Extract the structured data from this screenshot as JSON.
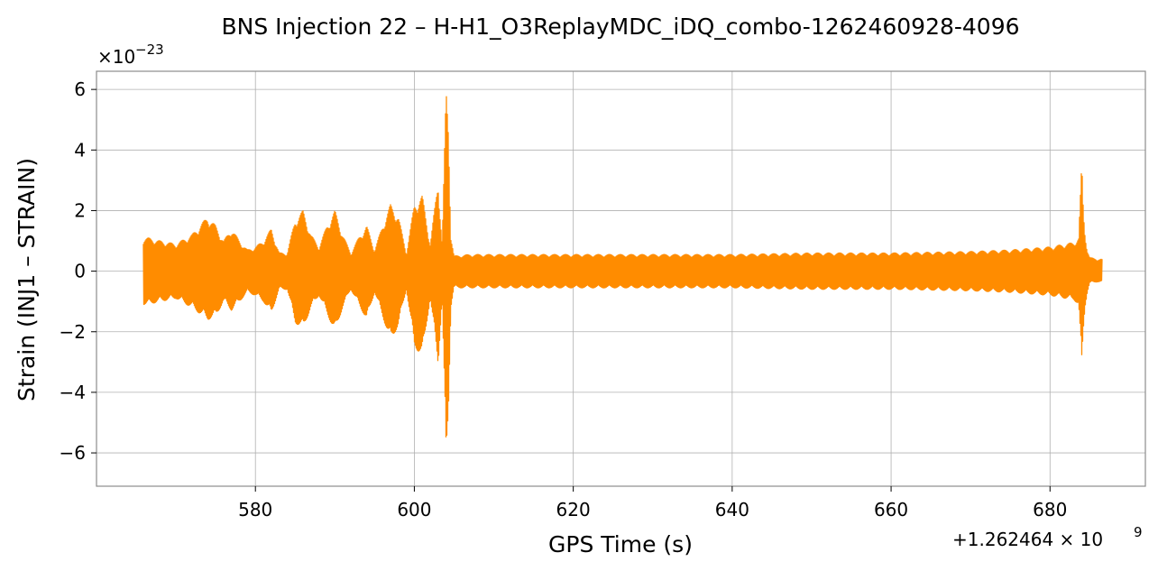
{
  "chart_data": {
    "type": "line",
    "title": "BNS Injection 22 – H-H1_O3ReplayMDC_iDQ_combo-1262460928-4096",
    "xlabel": "GPS Time (s)",
    "ylabel": "Strain (INJ1 – STRAIN)",
    "x_offset_label": "+1.262464 × 10",
    "x_offset_exponent": "9",
    "y_scale_label": "×10",
    "y_scale_exponent": "−23",
    "xlim": [
      560,
      692
    ],
    "ylim": [
      -7.1,
      6.6
    ],
    "x_ticks": [
      580,
      600,
      620,
      640,
      660,
      680
    ],
    "x_tick_labels": [
      "580",
      "600",
      "620",
      "640",
      "660",
      "680"
    ],
    "y_ticks": [
      -6,
      -4,
      -2,
      0,
      2,
      4,
      6
    ],
    "y_tick_labels": [
      "−6",
      "−4",
      "−2",
      "0",
      "2",
      "4",
      "6"
    ],
    "grid": true,
    "series": [
      {
        "color": "#ff8c00",
        "x_start": 565.9,
        "x_end": 686.6,
        "envelope": {
          "x": [
            565.9,
            566.5,
            568,
            570,
            572,
            574,
            575,
            576,
            577,
            578,
            579,
            580,
            581,
            582,
            583,
            584,
            585,
            586,
            587,
            588,
            589,
            590,
            591,
            592,
            593,
            594,
            595,
            596,
            597,
            598,
            599,
            600,
            601,
            602,
            603,
            603.5,
            604,
            604.3,
            604.6,
            605,
            607,
            610,
            620,
            630,
            640,
            650,
            660,
            670,
            675,
            680,
            682,
            683,
            683.6,
            684,
            684.2,
            684.4,
            684.7,
            685,
            686,
            686.6
          ],
          "upper": [
            1.1,
            1.1,
            1.0,
            0.9,
            1.2,
            1.8,
            1.5,
            1.0,
            1.4,
            1.0,
            0.7,
            0.8,
            1.0,
            1.4,
            0.6,
            0.6,
            1.7,
            2.0,
            1.2,
            0.8,
            1.5,
            2.0,
            1.2,
            0.6,
            1.1,
            1.5,
            0.7,
            1.5,
            2.2,
            1.8,
            0.6,
            2.2,
            2.5,
            0.9,
            3.0,
            0.9,
            6.0,
            4.8,
            1.2,
            0.5,
            0.55,
            0.55,
            0.55,
            0.55,
            0.55,
            0.6,
            0.6,
            0.65,
            0.7,
            0.8,
            0.9,
            0.95,
            1.1,
            3.6,
            2.0,
            1.3,
            0.7,
            0.45,
            0.4,
            0.4
          ],
          "lower": [
            -1.1,
            -1.1,
            -1.0,
            -0.9,
            -1.2,
            -1.6,
            -1.5,
            -1.0,
            -1.3,
            -1.0,
            -0.7,
            -0.8,
            -1.0,
            -1.4,
            -0.6,
            -0.6,
            -1.7,
            -1.9,
            -1.2,
            -0.8,
            -1.4,
            -2.0,
            -1.2,
            -0.6,
            -1.1,
            -1.6,
            -0.7,
            -1.5,
            -2.3,
            -1.8,
            -0.6,
            -2.5,
            -2.8,
            -0.9,
            -3.1,
            -0.9,
            -6.5,
            -4.6,
            -1.2,
            -0.55,
            -0.55,
            -0.55,
            -0.55,
            -0.55,
            -0.55,
            -0.6,
            -0.6,
            -0.65,
            -0.7,
            -0.8,
            -0.9,
            -0.95,
            -1.1,
            -3.2,
            -2.0,
            -1.2,
            -0.7,
            -0.4,
            -0.35,
            -0.35
          ]
        }
      }
    ]
  }
}
